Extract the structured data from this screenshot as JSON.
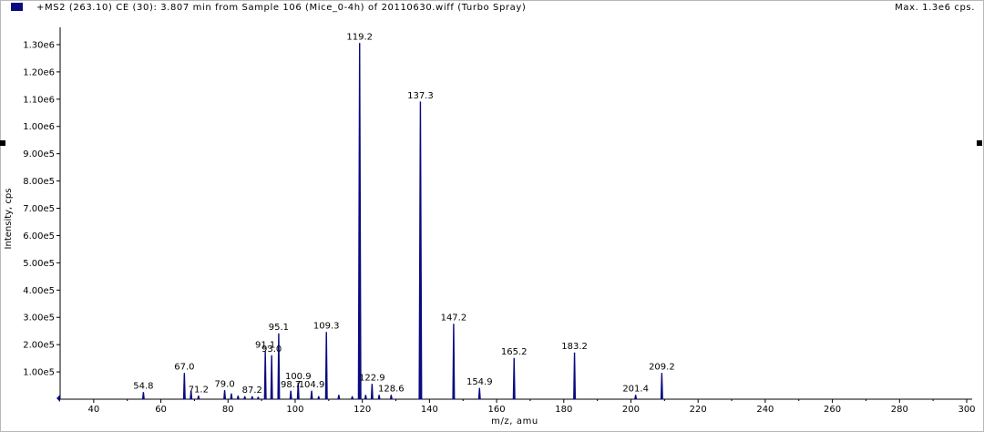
{
  "header": {
    "title": "+MS2 (263.10) CE (30): 3.807 min from Sample 106 (Mice_0-4h) of 20110630.wiff (Turbo Spray)",
    "max_label": "Max. 1.3e6 cps."
  },
  "colors": {
    "trace": "#0a0a80",
    "axis": "#000000",
    "background": "#ffffff"
  },
  "chart_data": {
    "type": "line",
    "title": "+MS2 (263.10) CE (30): 3.807 min from Sample 106 (Mice_0-4h) of 20110630.wiff (Turbo Spray)",
    "xlabel": "m/z, amu",
    "ylabel": "Intensity, cps",
    "xlim": [
      30,
      300
    ],
    "ylim": [
      0,
      1350000.0
    ],
    "x_ticks": [
      "40",
      "60",
      "80",
      "100",
      "120",
      "140",
      "160",
      "180",
      "200",
      "220",
      "240",
      "260",
      "280",
      "300"
    ],
    "x_tick_values": [
      40,
      60,
      80,
      100,
      120,
      140,
      160,
      180,
      200,
      220,
      240,
      260,
      280,
      300
    ],
    "y_ticks": [
      "1.00e5",
      "2.00e5",
      "3.00e5",
      "4.00e5",
      "5.00e5",
      "6.00e5",
      "7.00e5",
      "8.00e5",
      "9.00e5",
      "1.00e6",
      "1.10e6",
      "1.20e6",
      "1.30e6"
    ],
    "y_tick_values": [
      100000,
      200000,
      300000,
      400000,
      500000,
      600000,
      700000,
      800000,
      900000,
      1000000,
      1100000,
      1200000,
      1300000
    ],
    "grid": false,
    "peaks": [
      {
        "mz": 54.8,
        "intensity": 25000,
        "label": "54.8"
      },
      {
        "mz": 67.0,
        "intensity": 95000,
        "label": "67.0"
      },
      {
        "mz": 69.0,
        "intensity": 30000,
        "label": ""
      },
      {
        "mz": 71.2,
        "intensity": 12000,
        "label": "71.2"
      },
      {
        "mz": 79.0,
        "intensity": 32000,
        "label": "79.0"
      },
      {
        "mz": 81.0,
        "intensity": 20000,
        "label": ""
      },
      {
        "mz": 83.0,
        "intensity": 12000,
        "label": ""
      },
      {
        "mz": 85.0,
        "intensity": 10000,
        "label": ""
      },
      {
        "mz": 87.2,
        "intensity": 10000,
        "label": "87.2"
      },
      {
        "mz": 89.0,
        "intensity": 8000,
        "label": ""
      },
      {
        "mz": 91.1,
        "intensity": 175000,
        "label": "91.1"
      },
      {
        "mz": 93.0,
        "intensity": 160000,
        "label": "93.0"
      },
      {
        "mz": 95.1,
        "intensity": 240000,
        "label": "95.1"
      },
      {
        "mz": 98.7,
        "intensity": 30000,
        "label": "98.7"
      },
      {
        "mz": 100.9,
        "intensity": 60000,
        "label": "100.9"
      },
      {
        "mz": 104.9,
        "intensity": 30000,
        "label": "104.9"
      },
      {
        "mz": 107.0,
        "intensity": 10000,
        "label": ""
      },
      {
        "mz": 109.3,
        "intensity": 245000,
        "label": "109.3"
      },
      {
        "mz": 113.0,
        "intensity": 15000,
        "label": ""
      },
      {
        "mz": 117.0,
        "intensity": 10000,
        "label": ""
      },
      {
        "mz": 119.2,
        "intensity": 1305000,
        "label": "119.2"
      },
      {
        "mz": 121.0,
        "intensity": 15000,
        "label": ""
      },
      {
        "mz": 122.9,
        "intensity": 55000,
        "label": "122.9"
      },
      {
        "mz": 125.0,
        "intensity": 15000,
        "label": ""
      },
      {
        "mz": 128.6,
        "intensity": 15000,
        "label": "128.6"
      },
      {
        "mz": 137.3,
        "intensity": 1090000,
        "label": "137.3"
      },
      {
        "mz": 147.2,
        "intensity": 275000,
        "label": "147.2"
      },
      {
        "mz": 154.9,
        "intensity": 40000,
        "label": "154.9"
      },
      {
        "mz": 165.2,
        "intensity": 150000,
        "label": "165.2"
      },
      {
        "mz": 183.2,
        "intensity": 170000,
        "label": "183.2"
      },
      {
        "mz": 201.4,
        "intensity": 15000,
        "label": "201.4"
      },
      {
        "mz": 209.2,
        "intensity": 95000,
        "label": "209.2"
      }
    ]
  }
}
